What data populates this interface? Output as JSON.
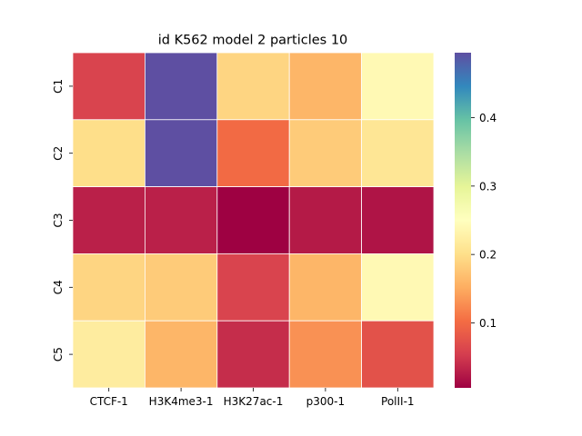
{
  "chart_data": {
    "type": "heatmap",
    "title": "id K562 model 2 particles 10",
    "xlabel": "",
    "ylabel": "",
    "x_categories": [
      "CTCF-1",
      "H3K4me3-1",
      "H3K27ac-1",
      "p300-1",
      "PolII-1"
    ],
    "y_categories": [
      "C1",
      "C2",
      "C3",
      "C4",
      "C5"
    ],
    "values": [
      [
        0.06,
        0.495,
        0.19,
        0.16,
        0.24
      ],
      [
        0.2,
        0.495,
        0.1,
        0.18,
        0.21
      ],
      [
        0.03,
        0.03,
        0.005,
        0.025,
        0.02
      ],
      [
        0.19,
        0.18,
        0.06,
        0.16,
        0.24
      ],
      [
        0.22,
        0.16,
        0.04,
        0.13,
        0.075
      ]
    ],
    "colorbar": {
      "colormap": "Spectral",
      "vmin": 0.005,
      "vmax": 0.495,
      "ticks": [
        "0.1",
        "0.2",
        "0.3",
        "0.4"
      ],
      "tick_values": [
        0.1,
        0.2,
        0.3,
        0.4
      ]
    },
    "cell_border_color": "#ffffff",
    "grid": false
  }
}
